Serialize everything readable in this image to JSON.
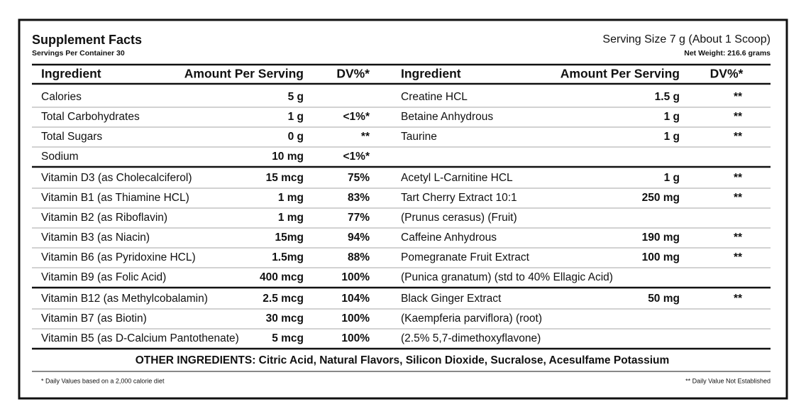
{
  "header": {
    "title": "Supplement Facts",
    "servings": "Servings Per Container 30",
    "serving_size": "Serving Size 7 g (About 1 Scoop)",
    "net_weight": "Net Weight: 216.6 grams"
  },
  "table": {
    "columns": [
      "Ingredient",
      "Amount Per Serving",
      "DV%*",
      "Ingredient",
      "Amount Per Serving",
      "DV%*"
    ],
    "sections": [
      [
        [
          "Calories",
          "5 g",
          null,
          "Creatine HCL",
          "1.5 g",
          "**"
        ],
        [
          "Total Carbohydrates",
          "1 g",
          "<1%*",
          "Betaine Anhydrous",
          "1 g",
          "**"
        ],
        [
          "Total Sugars",
          "0 g",
          "**",
          "Taurine",
          "1 g",
          "**"
        ],
        [
          "Sodium",
          "10 mg",
          "<1%*",
          null,
          null,
          null
        ]
      ],
      [
        [
          "Vitamin D3 (as Cholecalciferol)",
          "15 mcg",
          "75%",
          "Acetyl L-Carnitine HCL",
          "1 g",
          "**"
        ],
        [
          "Vitamin B1 (as Thiamine HCL)",
          "1 mg",
          "83%",
          "Tart Cherry Extract 10:1",
          "250 mg",
          "**"
        ],
        [
          "Vitamin B2 (as Riboflavin)",
          "1 mg",
          "77%",
          "(Prunus cerasus) (Fruit)",
          null,
          null
        ],
        [
          "Vitamin B3 (as Niacin)",
          "15mg",
          "94%",
          "Caffeine Anhydrous",
          "190 mg",
          "**"
        ],
        [
          "Vitamin B6 (as Pyridoxine HCL)",
          "1.5mg",
          "88%",
          "Pomegranate Fruit Extract",
          "100 mg",
          "**"
        ],
        [
          "Vitamin B9 (as Folic Acid)",
          "400 mcg",
          "100%",
          "(Punica granatum) (std to 40% Ellagic Acid)",
          null,
          null
        ]
      ],
      [
        [
          "Vitamin B12 (as Methylcobalamin)",
          "2.5 mcg",
          "104%",
          "Black Ginger Extract",
          "50 mg",
          "**"
        ],
        [
          "Vitamin B7 (as Biotin)",
          "30 mcg",
          "100%",
          "(Kaempferia parviflora) (root)",
          null,
          null
        ],
        [
          "Vitamin B5 (as D-Calcium Pantothenate)",
          "5 mcg",
          "100%",
          "(2.5% 5,7-dimethoxyflavone)",
          null,
          null
        ]
      ]
    ]
  },
  "other_ingredients": "OTHER INGREDIENTS: Citric Acid, Natural Flavors, Silicon Dioxide, Sucralose, Acesulfame Potassium",
  "footnotes": {
    "left": "* Daily Values based on a 2,000 calorie diet",
    "right": "** Daily Value Not Established"
  }
}
